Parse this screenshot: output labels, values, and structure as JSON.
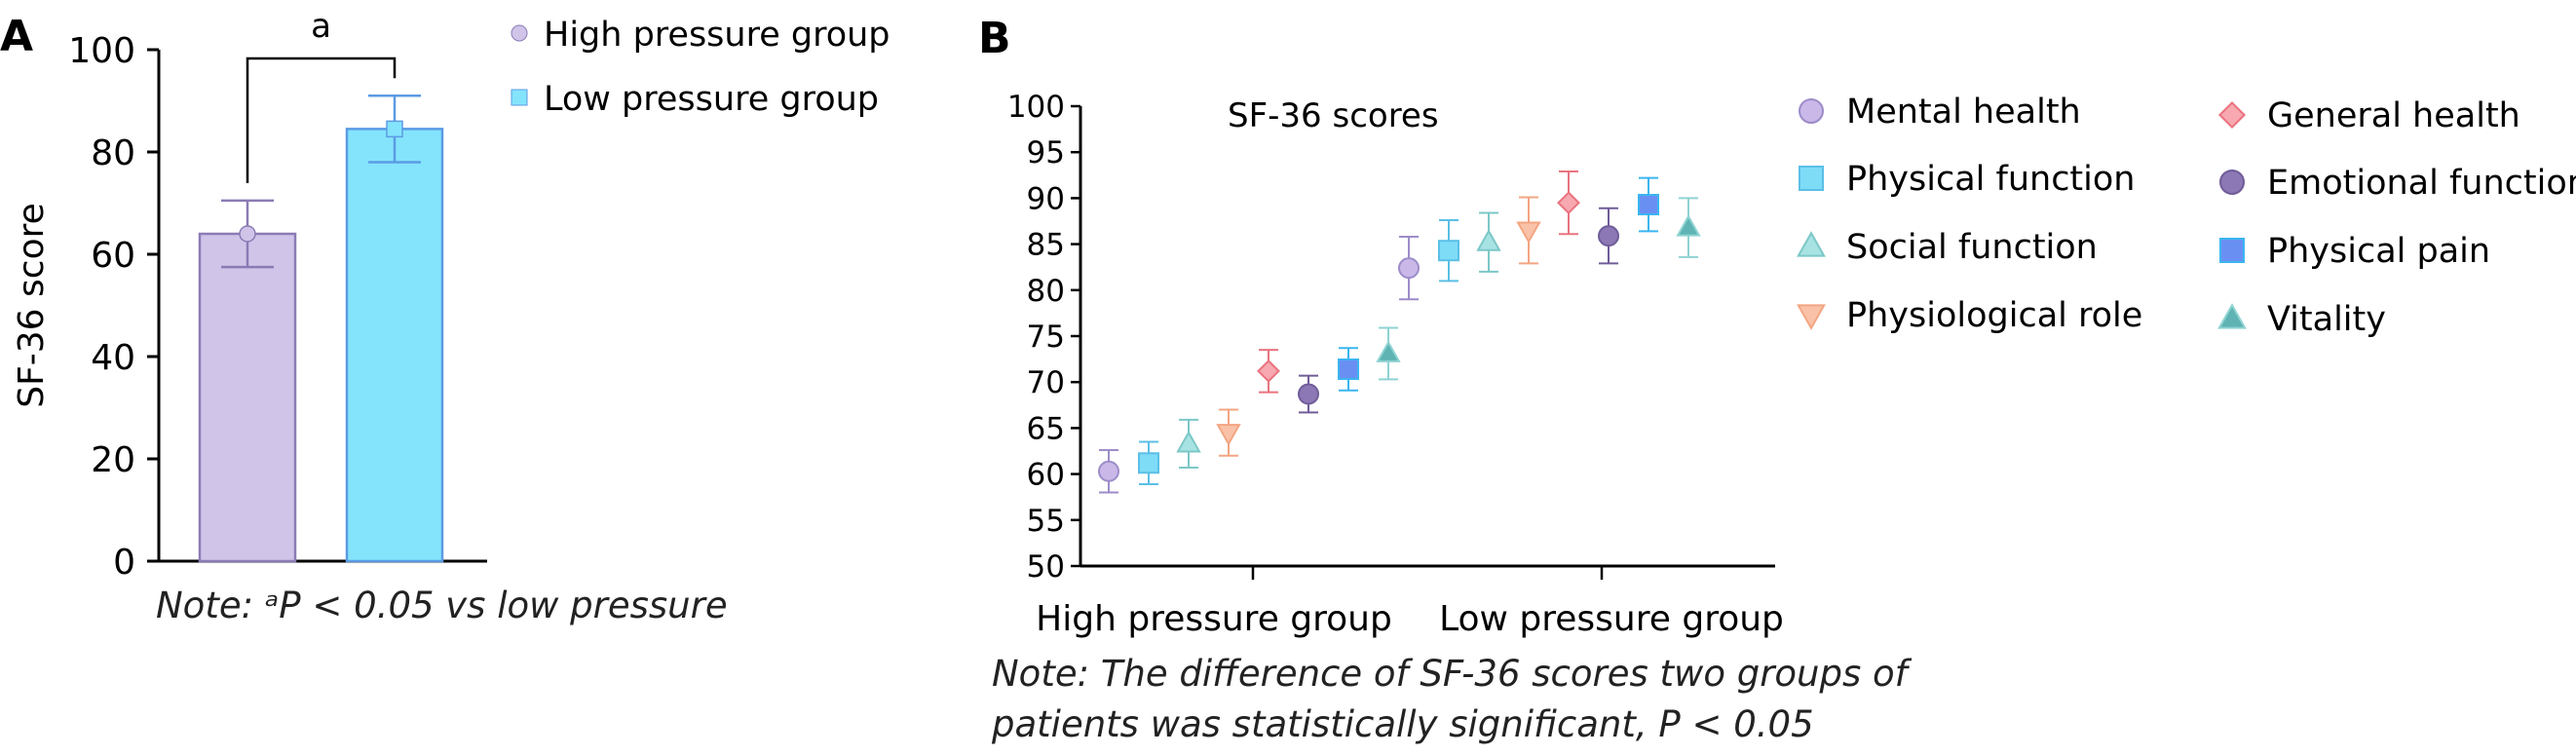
{
  "chart_data": [
    {
      "panel_label": "A",
      "type": "bar",
      "ylabel": "SF-36 score",
      "ylim": [
        0,
        100
      ],
      "yticks": [
        0,
        20,
        40,
        60,
        80,
        100
      ],
      "categories": [
        "High pressure group",
        "Low pressure group"
      ],
      "values": [
        64,
        84.5
      ],
      "error_low": [
        57.5,
        78
      ],
      "error_high": [
        70.5,
        91
      ],
      "colors": [
        "#d1c4e9",
        "#84e4fc"
      ],
      "edge_colors": [
        "#8b7bb5",
        "#5b9be3"
      ],
      "legend_position": "top-right, outside plot",
      "significance_label": "a",
      "note": "Note: ᵃP < 0.05 vs low pressure"
    },
    {
      "panel_label": "B",
      "type": "scatter",
      "title": "SF-36 scores",
      "ylim": [
        50,
        100
      ],
      "yticks": [
        50,
        55,
        60,
        65,
        70,
        75,
        80,
        85,
        90,
        95,
        100
      ],
      "groups": [
        "High pressure group",
        "Low pressure group"
      ],
      "legend_position": "right, two columns",
      "series": [
        {
          "name": "Mental health",
          "marker": "circle",
          "color": "#c9b8e8",
          "edge": "#9d8cc9",
          "values": [
            60.3,
            82.4
          ],
          "error": [
            2.3,
            3.4
          ]
        },
        {
          "name": "Physical function",
          "marker": "square",
          "color": "#7fdcf7",
          "edge": "#5bbfe6",
          "values": [
            61.2,
            84.3
          ],
          "error": [
            2.3,
            3.3
          ]
        },
        {
          "name": "Social function",
          "marker": "triangle-up",
          "color": "#a8e3e3",
          "edge": "#7cc7c7",
          "values": [
            63.3,
            85.2
          ],
          "error": [
            2.6,
            3.2
          ]
        },
        {
          "name": "Physiological role",
          "marker": "triangle-down",
          "color": "#f9c2a8",
          "edge": "#f3a582",
          "values": [
            64.5,
            86.5
          ],
          "error": [
            2.5,
            3.6
          ]
        },
        {
          "name": "General health",
          "marker": "diamond",
          "color": "#f7a8b0",
          "edge": "#e9737f",
          "values": [
            71.2,
            89.5
          ],
          "error": [
            2.3,
            3.4
          ]
        },
        {
          "name": "Emotional function",
          "marker": "circle",
          "color": "#8c78b4",
          "edge": "#6f5c98",
          "values": [
            68.7,
            85.9
          ],
          "error": [
            2.0,
            3.0
          ]
        },
        {
          "name": "Physical pain",
          "marker": "square",
          "color": "#6a8ff3",
          "edge": "#3bb5f0",
          "values": [
            71.4,
            89.3
          ],
          "error": [
            2.3,
            2.9
          ]
        },
        {
          "name": "Vitality",
          "marker": "triangle-up",
          "color": "#5fb3b3",
          "edge": "#8fd3d3",
          "values": [
            73.1,
            86.8
          ],
          "error": [
            2.8,
            3.2
          ]
        }
      ],
      "note_lines": [
        "Note: The difference of SF-36 scores two groups of",
        "patients was statistically significant, P < 0.05"
      ]
    }
  ]
}
